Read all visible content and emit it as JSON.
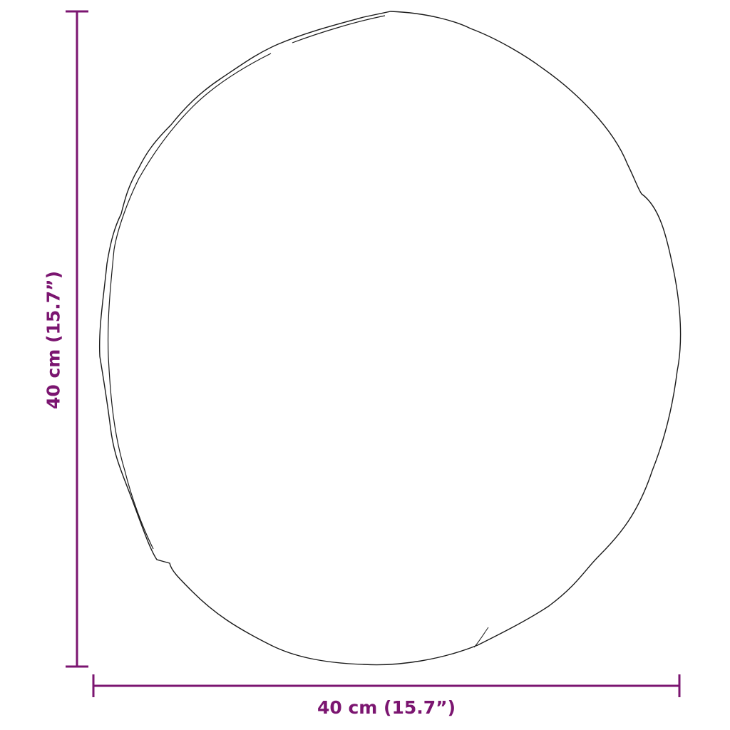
{
  "colors": {
    "dimension": "#7b1570",
    "outline": "#1a1a1a"
  },
  "dimensions": {
    "width_label": "40 cm (15.7”)",
    "height_label": "40 cm (15.7”)"
  }
}
